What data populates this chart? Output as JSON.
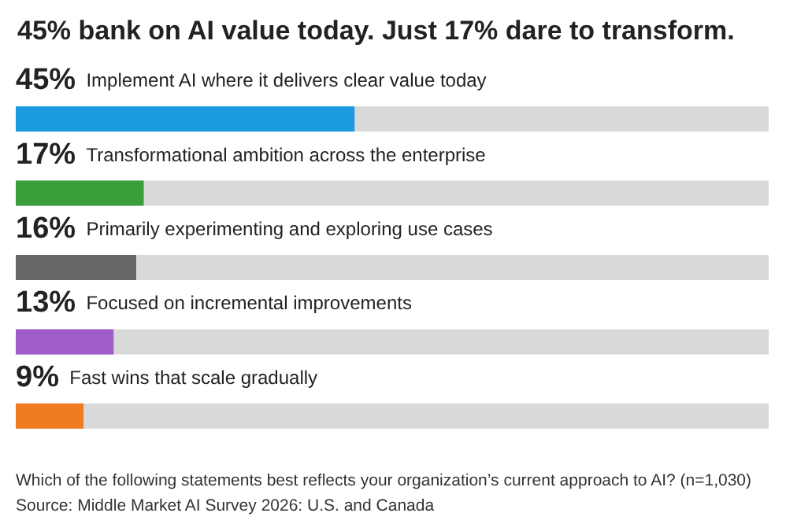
{
  "chart_data": {
    "type": "bar",
    "orientation": "horizontal",
    "title": "45% bank on AI value today. Just 17% dare to transform.",
    "categories": [
      "Implement AI where it delivers clear value today",
      "Transformational ambition across the enterprise",
      "Primarily experimenting and exploring use cases",
      "Focused on incremental improvements",
      "Fast wins that scale gradually"
    ],
    "values": [
      45,
      17,
      16,
      13,
      9
    ],
    "colors": [
      "#1a9be0",
      "#3a9e3a",
      "#666666",
      "#a05cc8",
      "#f07b22"
    ],
    "value_labels": [
      "45%",
      "17%",
      "16%",
      "13%",
      "9%"
    ],
    "xlim": [
      0,
      100
    ],
    "tick_labels": false,
    "annotations": [
      "Which of the following statements best reflects your organization’s current approach to AI? (n=1,030)",
      "Source: Middle Market AI Survey 2026: U.S. and Canada"
    ]
  }
}
